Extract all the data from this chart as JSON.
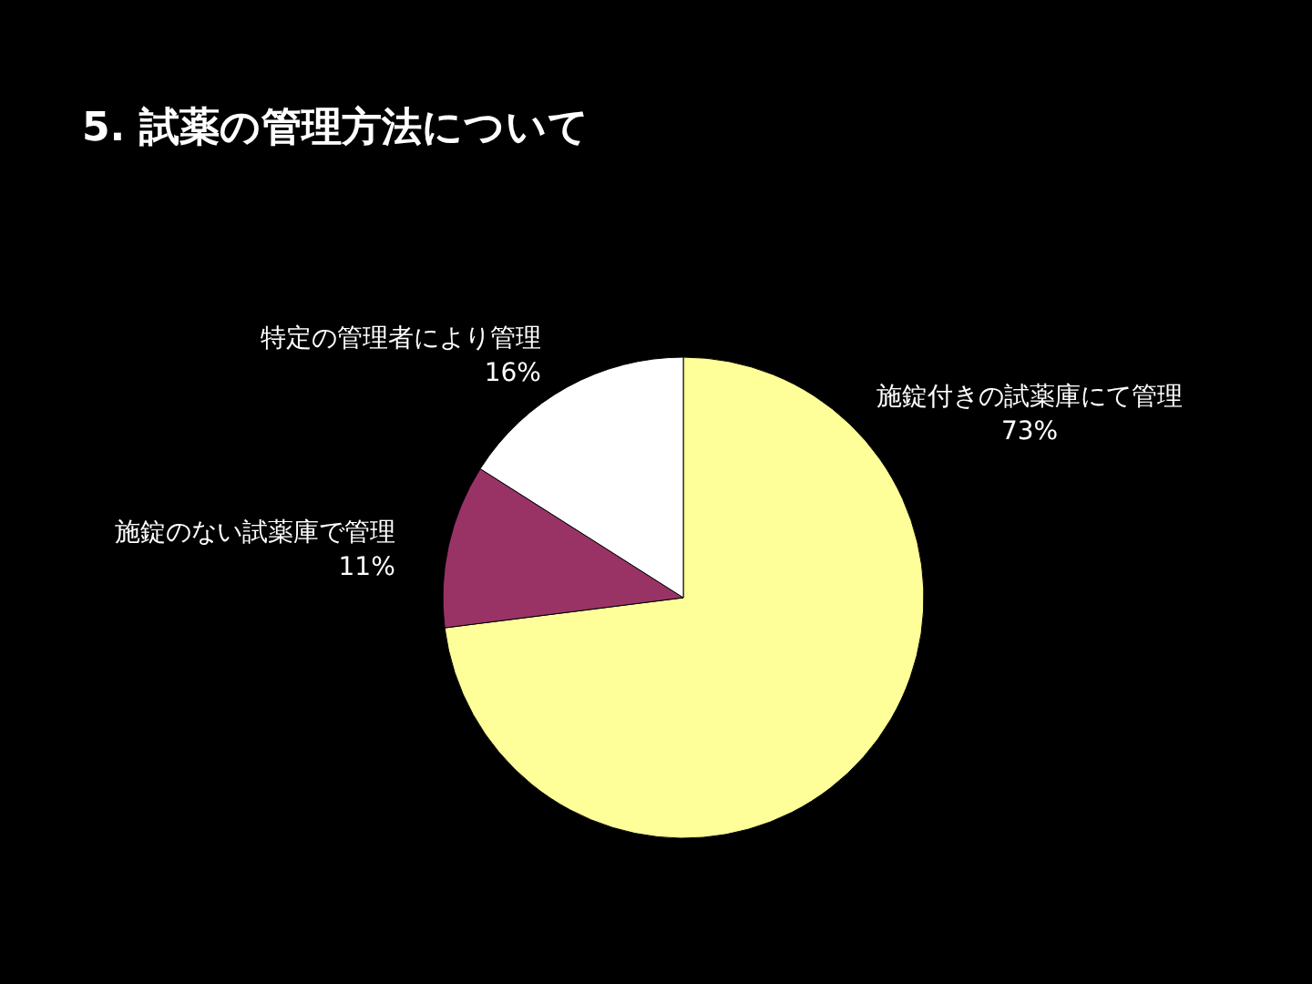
{
  "chart_data": {
    "type": "pie",
    "title": "5. 試薬の管理方法について",
    "categories": [
      "施錠付きの試薬庫にて管理",
      "施錠のない試薬庫で管理",
      "特定の管理者により管理"
    ],
    "values": [
      73,
      11,
      16
    ],
    "colors": [
      "#ffff99",
      "#993366",
      "#ffffff"
    ],
    "value_labels": [
      "73%",
      "11%",
      "16%"
    ]
  }
}
